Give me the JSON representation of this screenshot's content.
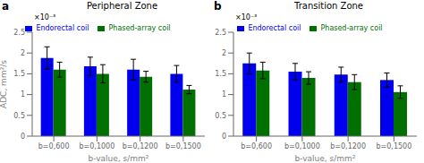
{
  "chart_data": [
    {
      "type": "bar",
      "title": "Peripheral Zone",
      "panel_label": "a",
      "annotation": "×10⁻³",
      "x_label": "b-value, s/mm²",
      "y_label": "ADC, mm²/s",
      "categories": [
        "b=0,600",
        "b=0,1000",
        "b=0,1200",
        "b=0,1500"
      ],
      "series": [
        {
          "name": "Endorectal coil",
          "color": "#0000ee",
          "values": [
            0.00188,
            0.00168,
            0.0016,
            0.0015
          ],
          "errors": [
            0.00027,
            0.00022,
            0.00025,
            0.0002
          ]
        },
        {
          "name": "Phased-array coil",
          "color": "#007000",
          "values": [
            0.0016,
            0.0015,
            0.00143,
            0.00112
          ],
          "errors": [
            0.00018,
            0.00022,
            0.00013,
            0.0001
          ]
        }
      ],
      "ylim": [
        0,
        0.0025
      ],
      "yticks": [
        0,
        {
          "value": 0.0005,
          "label": "0.5"
        },
        {
          "value": 0.001,
          "label": "1"
        },
        {
          "value": 0.0015,
          "label": "1.5"
        },
        {
          "value": 0.002,
          "label": "2"
        },
        {
          "value": 0.0025,
          "label": "2.5"
        }
      ],
      "legend": "top"
    },
    {
      "type": "bar",
      "title": "Transition Zone",
      "panel_label": "b",
      "annotation": "×10⁻³",
      "x_label": "b-value, s/mm²",
      "categories": [
        "b=0,600",
        "b=0,1000",
        "b=0,1200",
        "b=0,1500"
      ],
      "series": [
        {
          "name": "Endorectal coil",
          "color": "#0000ee",
          "values": [
            0.00175,
            0.00155,
            0.00148,
            0.00135
          ],
          "errors": [
            0.00025,
            0.0002,
            0.00018,
            0.00017
          ]
        },
        {
          "name": "Phased-array coil",
          "color": "#007000",
          "values": [
            0.00158,
            0.0014,
            0.0013,
            0.00106
          ],
          "errors": [
            0.0002,
            0.00015,
            0.00018,
            0.00015
          ]
        }
      ],
      "ylim": [
        0,
        0.0025
      ],
      "yticks": [
        0,
        {
          "value": 0.0005,
          "label": "0.5"
        },
        {
          "value": 0.001,
          "label": "1"
        },
        {
          "value": 0.0015,
          "label": "1.5"
        },
        {
          "value": 0.002,
          "label": "2"
        },
        {
          "value": 0.0025,
          "label": "2.5"
        }
      ],
      "legend": "top"
    }
  ]
}
